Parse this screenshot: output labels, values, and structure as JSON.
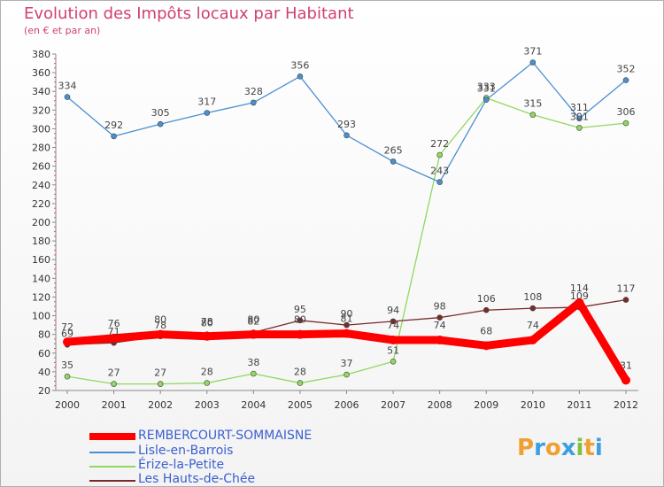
{
  "header": {
    "title": "Evolution des Impôts locaux par Habitant",
    "subtitle": "(en € et par an)"
  },
  "logo": {
    "text": "Proxiti",
    "letters": [
      {
        "ch": "P",
        "color": "#f0a030"
      },
      {
        "ch": "r",
        "color": "#3aa0e0"
      },
      {
        "ch": "o",
        "color": "#f0a030"
      },
      {
        "ch": "x",
        "color": "#3aa0e0"
      },
      {
        "ch": "i",
        "color": "#80c040"
      },
      {
        "ch": "t",
        "color": "#f0a030"
      },
      {
        "ch": "i",
        "color": "#3aa0e0"
      }
    ]
  },
  "chart_data": {
    "type": "line",
    "title": "Evolution des Impôts locaux par Habitant",
    "subtitle": "(en € et par an)",
    "xlabel": "",
    "ylabel": "",
    "x": [
      "2000",
      "2001",
      "2002",
      "2003",
      "2004",
      "2005",
      "2006",
      "2007",
      "2008",
      "2009",
      "2010",
      "2011",
      "2012"
    ],
    "ylim": [
      20,
      380
    ],
    "yticks": [
      20,
      40,
      60,
      80,
      100,
      120,
      140,
      160,
      180,
      200,
      220,
      240,
      260,
      280,
      300,
      320,
      340,
      360,
      380
    ],
    "grid": false,
    "legend_position": "bottom-left",
    "series": [
      {
        "name": "REMBERCOURT-SOMMAISNE",
        "color": "#ff0000",
        "values": [
          72,
          76,
          80,
          78,
          80,
          80,
          81,
          74,
          74,
          68,
          74,
          114,
          31
        ]
      },
      {
        "name": "Lisle-en-Barrois",
        "color": "#4a90d0",
        "values": [
          334,
          292,
          305,
          317,
          328,
          356,
          293,
          265,
          243,
          331,
          371,
          311,
          352
        ]
      },
      {
        "name": "Érize-la-Petite",
        "color": "#90d860",
        "values": [
          35,
          27,
          27,
          28,
          38,
          28,
          37,
          51,
          272,
          333,
          315,
          301,
          306
        ]
      },
      {
        "name": "Les Hauts-de-Chée",
        "color": "#7a2a2a",
        "values": [
          69,
          71,
          78,
          80,
          82,
          95,
          90,
          94,
          98,
          106,
          108,
          109,
          117
        ]
      }
    ]
  }
}
